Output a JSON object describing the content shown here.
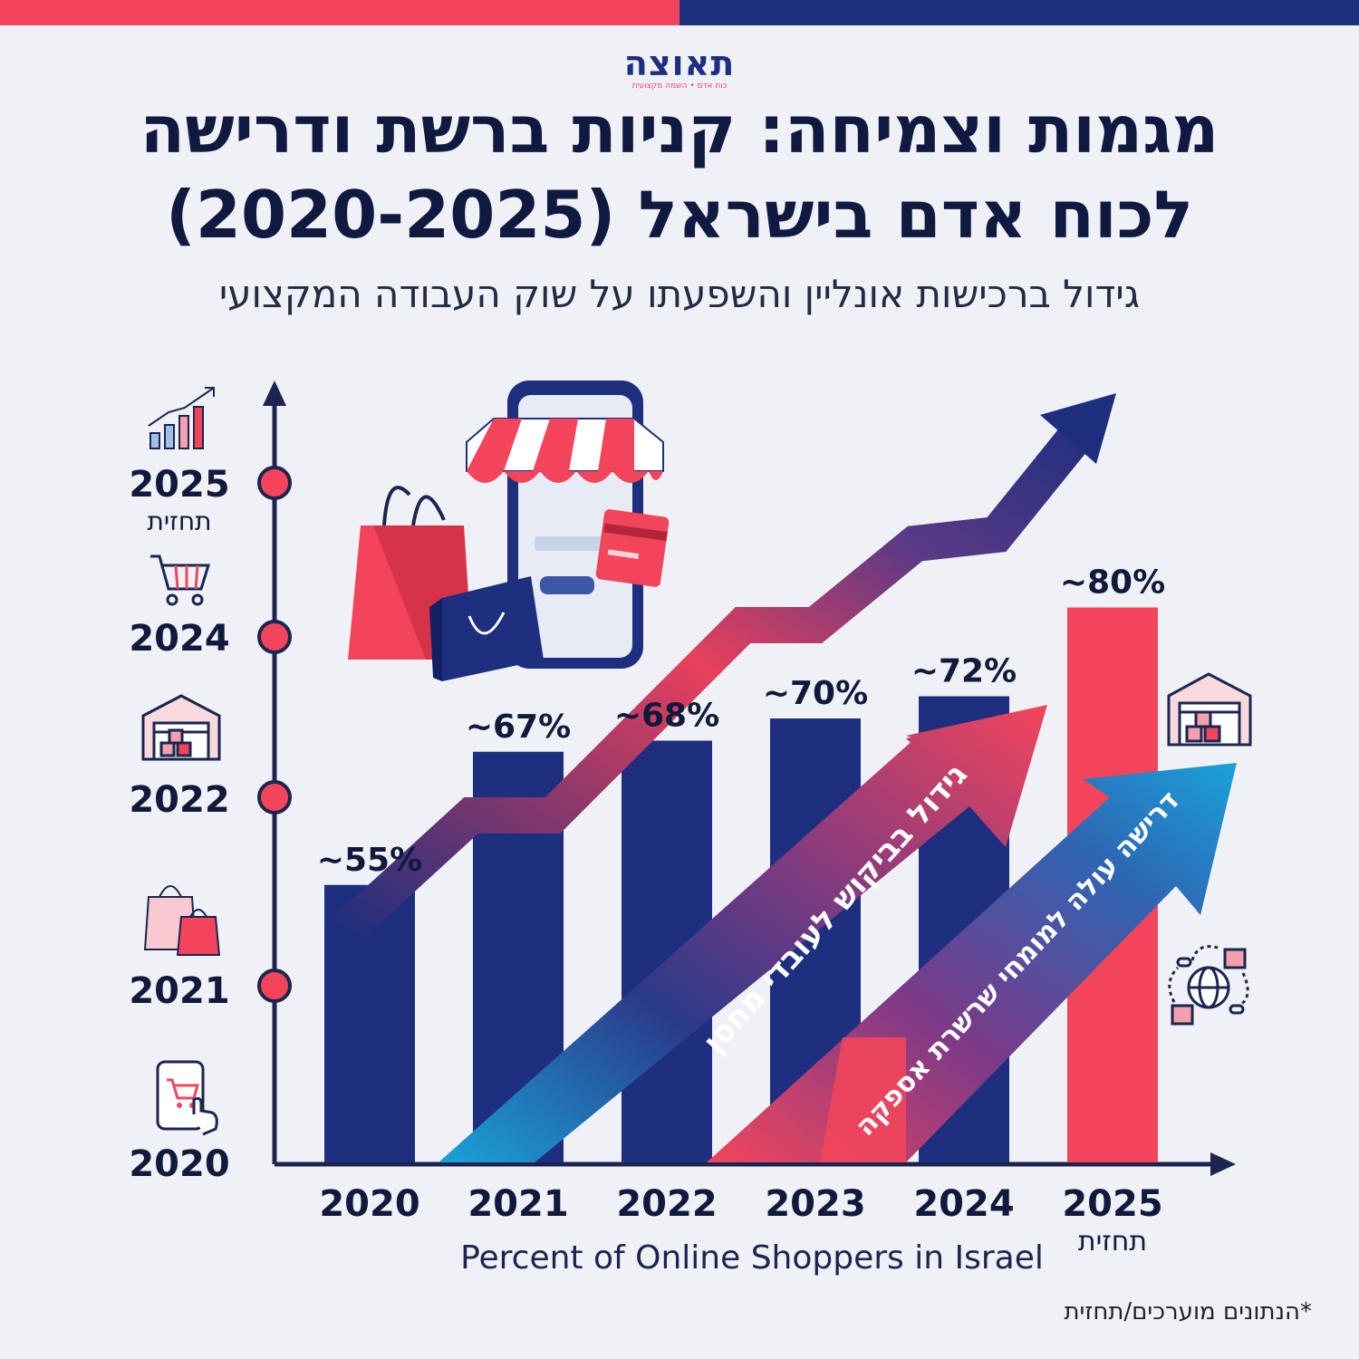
{
  "header": {
    "logo": "תאוצה",
    "logo_sub": "כוח אדם • השמה מקצועית",
    "title_line1": "מגמות וצמיחה: קניות ברשת ודרישה",
    "title_line2": "לכוח אדם בישראל (2020-2025)",
    "subtitle": "גידול ברכישות אונליין והשפעתו על שוק העבודה המקצועי"
  },
  "timeline": {
    "items": [
      {
        "year": "2025",
        "note": "תחזית",
        "icon": "rising-bar-chart-icon"
      },
      {
        "year": "2024",
        "note": "",
        "icon": "shopping-cart-icon"
      },
      {
        "year": "2022",
        "note": "",
        "icon": "warehouse-icon"
      },
      {
        "year": "2021",
        "note": "",
        "icon": "shopping-bags-icon"
      },
      {
        "year": "2020",
        "note": "",
        "icon": "phone-shopping-icon"
      }
    ]
  },
  "chart_data": {
    "type": "bar",
    "categories": [
      "2020",
      "2021",
      "2022",
      "2023",
      "2024",
      "2025"
    ],
    "category_notes": [
      "",
      "",
      "",
      "",
      "",
      "תחזית"
    ],
    "values": [
      55,
      67,
      68,
      70,
      72,
      80
    ],
    "data_labels": [
      "~55%",
      "~67%",
      "~68%",
      "~70%",
      "~72%",
      "~80%"
    ],
    "bar_colors": [
      "#1d2f7e",
      "#1d2f7e",
      "#1d2f7e",
      "#1d2f7e",
      "#1d2f7e",
      "#f2455b"
    ],
    "xlabel": "Percent of Online Shoppers in Israel",
    "ylabel": "",
    "ylim": [
      30,
      90
    ],
    "annotations": [
      "גידול בביקוש לעובדי מחסן",
      "דרישה עולה למומחי שרשרת אספקה"
    ]
  },
  "footnote": "*הנתונים מוערכים/תחזית",
  "colors": {
    "navy": "#1d2f7e",
    "red": "#f2455b",
    "cyan": "#1aa3d8",
    "background": "#f0f1f6"
  },
  "decor_icons": [
    "phone-storefront-icon",
    "shopping-bag-red-icon",
    "shopping-bag-navy-icon",
    "credit-card-icon",
    "warehouse-icon",
    "global-supply-chain-icon",
    "trend-arrow-icon"
  ]
}
